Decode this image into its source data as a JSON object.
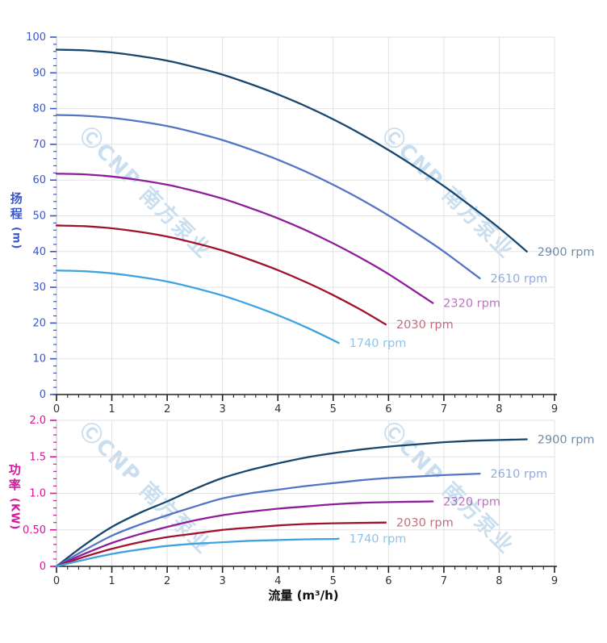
{
  "watermark": {
    "text": "ⒸCNP 南方泵业",
    "color": "#b7d3ea"
  },
  "colors": {
    "grid": "#e2e2e6",
    "axis_line": "#b9c0cc",
    "x_axis_line": "#222222",
    "x_tick_label": "#333333",
    "head_axis_accent": "#3c55cc",
    "power_axis_accent": "#d6169b",
    "rpm_label_opacity": 0.62
  },
  "chart_data": [
    {
      "type": "line",
      "title": "",
      "xlabel": "",
      "ylabel": "扬程 (m)",
      "ylabel_cjk": "扬程",
      "ylabel_unit": "(m)",
      "xlim": [
        0,
        9
      ],
      "ylim": [
        0,
        100
      ],
      "grid": true,
      "legend_position": "curve-end-labels",
      "x_ticks": {
        "major": 1,
        "minor": 0.2,
        "labels": [
          "0",
          "1",
          "2",
          "3",
          "4",
          "5",
          "6",
          "7",
          "8",
          "9"
        ]
      },
      "y_ticks": {
        "major": 10,
        "minor": 2,
        "labels": [
          "0",
          "10",
          "20",
          "30",
          "40",
          "50",
          "60",
          "70",
          "80",
          "90",
          "100"
        ],
        "color": "#3c55cc"
      },
      "series": [
        {
          "name": "2900 rpm",
          "color": "#17466f",
          "points": [
            [
              0,
              96.5
            ],
            [
              0.5,
              96.3
            ],
            [
              1,
              95.7
            ],
            [
              1.5,
              94.7
            ],
            [
              2,
              93.4
            ],
            [
              2.5,
              91.6
            ],
            [
              3,
              89.5
            ],
            [
              3.5,
              86.9
            ],
            [
              4,
              84
            ],
            [
              4.5,
              80.7
            ],
            [
              5,
              77
            ],
            [
              5.5,
              72.9
            ],
            [
              6,
              68.4
            ],
            [
              6.5,
              63.5
            ],
            [
              7,
              58.3
            ],
            [
              7.5,
              52.6
            ],
            [
              8,
              46.6
            ],
            [
              8.5,
              40
            ]
          ]
        },
        {
          "name": "2610 rpm",
          "color": "#5276c4",
          "points": [
            [
              0,
              78.2
            ],
            [
              0.5,
              78
            ],
            [
              1,
              77.4
            ],
            [
              1.5,
              76.4
            ],
            [
              2,
              75.1
            ],
            [
              2.5,
              73.3
            ],
            [
              3,
              71.2
            ],
            [
              3.5,
              68.6
            ],
            [
              4,
              65.7
            ],
            [
              4.5,
              62.4
            ],
            [
              5,
              58.7
            ],
            [
              5.5,
              54.6
            ],
            [
              6,
              50.1
            ],
            [
              6.5,
              45.2
            ],
            [
              7,
              40
            ],
            [
              7.65,
              32.5
            ]
          ]
        },
        {
          "name": "2320 rpm",
          "color": "#8f1d9a",
          "points": [
            [
              0,
              61.8
            ],
            [
              0.5,
              61.6
            ],
            [
              1,
              61
            ],
            [
              1.5,
              60
            ],
            [
              2,
              58.7
            ],
            [
              2.5,
              56.9
            ],
            [
              3,
              54.8
            ],
            [
              3.5,
              52.2
            ],
            [
              4,
              49.3
            ],
            [
              4.5,
              46
            ],
            [
              5,
              42.3
            ],
            [
              5.5,
              38.2
            ],
            [
              6,
              33.7
            ],
            [
              6.8,
              25.6
            ]
          ]
        },
        {
          "name": "2030 rpm",
          "color": "#a0132f",
          "points": [
            [
              0,
              47.3
            ],
            [
              0.5,
              47.1
            ],
            [
              1,
              46.5
            ],
            [
              1.5,
              45.5
            ],
            [
              2,
              44.2
            ],
            [
              2.5,
              42.4
            ],
            [
              3,
              40.3
            ],
            [
              3.5,
              37.7
            ],
            [
              4,
              34.8
            ],
            [
              4.5,
              31.5
            ],
            [
              5,
              27.8
            ],
            [
              5.5,
              23.7
            ],
            [
              5.95,
              19.6
            ]
          ]
        },
        {
          "name": "1740 rpm",
          "color": "#3fa3e0",
          "points": [
            [
              0,
              34.7
            ],
            [
              0.5,
              34.5
            ],
            [
              1,
              33.9
            ],
            [
              1.5,
              32.9
            ],
            [
              2,
              31.6
            ],
            [
              2.5,
              29.8
            ],
            [
              3,
              27.7
            ],
            [
              3.5,
              25.1
            ],
            [
              4,
              22.2
            ],
            [
              4.5,
              18.9
            ],
            [
              5,
              15.2
            ],
            [
              5.1,
              14.4
            ]
          ]
        }
      ]
    },
    {
      "type": "line",
      "title": "",
      "xlabel": "流量 (m³/h)",
      "ylabel": "功率 (KW)",
      "ylabel_cjk": "功率",
      "ylabel_unit": "(KW)",
      "xlim": [
        0,
        9
      ],
      "ylim": [
        0,
        2
      ],
      "grid": true,
      "legend_position": "curve-end-labels",
      "x_ticks": {
        "major": 1,
        "minor": 0.2,
        "labels": [
          "0",
          "1",
          "2",
          "3",
          "4",
          "5",
          "6",
          "7",
          "8",
          "9"
        ]
      },
      "y_ticks": {
        "major": 0.5,
        "minor": 0.1,
        "labels": [
          "0",
          "0.50",
          "1.0",
          "1.5",
          "2.0"
        ],
        "color": "#d6169b"
      },
      "series": [
        {
          "name": "2900 rpm",
          "color": "#17466f",
          "points": [
            [
              0,
              0
            ],
            [
              0.5,
              0.29
            ],
            [
              1,
              0.54
            ],
            [
              1.5,
              0.73
            ],
            [
              2,
              0.89
            ],
            [
              2.5,
              1.06
            ],
            [
              3,
              1.21
            ],
            [
              3.5,
              1.32
            ],
            [
              4,
              1.41
            ],
            [
              4.5,
              1.49
            ],
            [
              5,
              1.55
            ],
            [
              5.5,
              1.6
            ],
            [
              6,
              1.64
            ],
            [
              6.5,
              1.67
            ],
            [
              7,
              1.7
            ],
            [
              7.5,
              1.72
            ],
            [
              8,
              1.73
            ],
            [
              8.5,
              1.74
            ]
          ]
        },
        {
          "name": "2610 rpm",
          "color": "#5276c4",
          "points": [
            [
              0,
              0
            ],
            [
              0.5,
              0.22
            ],
            [
              1,
              0.42
            ],
            [
              1.5,
              0.57
            ],
            [
              2,
              0.7
            ],
            [
              2.5,
              0.82
            ],
            [
              3,
              0.93
            ],
            [
              3.5,
              1
            ],
            [
              4,
              1.05
            ],
            [
              4.5,
              1.1
            ],
            [
              5,
              1.14
            ],
            [
              5.5,
              1.18
            ],
            [
              6,
              1.21
            ],
            [
              6.5,
              1.23
            ],
            [
              7,
              1.25
            ],
            [
              7.65,
              1.27
            ]
          ]
        },
        {
          "name": "2320 rpm",
          "color": "#8f1d9a",
          "points": [
            [
              0,
              0
            ],
            [
              0.5,
              0.17
            ],
            [
              1,
              0.32
            ],
            [
              1.5,
              0.44
            ],
            [
              2,
              0.54
            ],
            [
              2.5,
              0.63
            ],
            [
              3,
              0.7
            ],
            [
              3.5,
              0.75
            ],
            [
              4,
              0.79
            ],
            [
              4.5,
              0.82
            ],
            [
              5,
              0.85
            ],
            [
              5.5,
              0.87
            ],
            [
              6,
              0.88
            ],
            [
              6.8,
              0.89
            ]
          ]
        },
        {
          "name": "2030 rpm",
          "color": "#a0132f",
          "points": [
            [
              0,
              0
            ],
            [
              0.5,
              0.13
            ],
            [
              1,
              0.24
            ],
            [
              1.5,
              0.33
            ],
            [
              2,
              0.4
            ],
            [
              2.5,
              0.45
            ],
            [
              3,
              0.5
            ],
            [
              3.5,
              0.53
            ],
            [
              4,
              0.56
            ],
            [
              4.5,
              0.58
            ],
            [
              5,
              0.59
            ],
            [
              5.95,
              0.6
            ]
          ]
        },
        {
          "name": "1740 rpm",
          "color": "#3fa3e0",
          "points": [
            [
              0,
              0
            ],
            [
              0.5,
              0.09
            ],
            [
              1,
              0.17
            ],
            [
              1.5,
              0.23
            ],
            [
              2,
              0.28
            ],
            [
              2.5,
              0.31
            ],
            [
              3,
              0.33
            ],
            [
              3.5,
              0.35
            ],
            [
              4,
              0.36
            ],
            [
              4.5,
              0.37
            ],
            [
              5,
              0.375
            ],
            [
              5.1,
              0.38
            ]
          ]
        }
      ]
    }
  ]
}
